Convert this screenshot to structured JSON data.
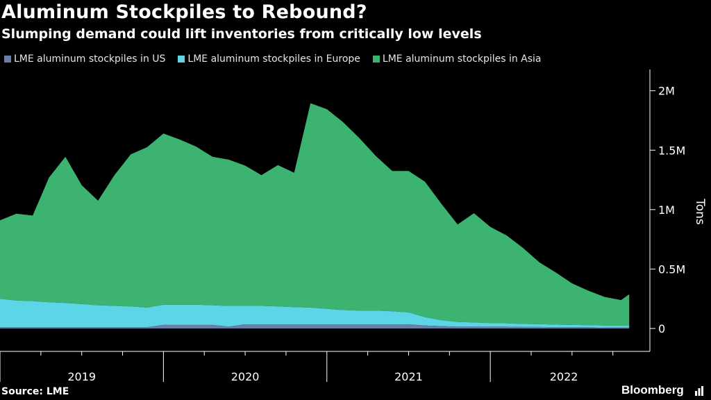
{
  "title": "Aluminum Stockpiles to Rebound?",
  "subtitle": "Slumping demand could lift inventories from critically low levels",
  "source": "Source: LME",
  "brand": "Bloomberg",
  "colors": {
    "us": "#6b7ea6",
    "europe": "#5cd6e6",
    "asia": "#3cb371",
    "axis": "#ffffff",
    "grid": "#555555"
  },
  "chart_data": {
    "type": "area",
    "stacked": true,
    "title": "Aluminum Stockpiles to Rebound?",
    "ylabel": "Tons",
    "ylim": [
      0,
      2150000
    ],
    "yticks": [
      0,
      500000,
      1000000,
      1500000,
      2000000
    ],
    "ytick_labels": [
      "0",
      "0.5M",
      "1M",
      "1.5M",
      "2M"
    ],
    "xlim": [
      2019.0,
      2022.9
    ],
    "years": [
      "2019",
      "2020",
      "2021",
      "2022"
    ],
    "x": [
      2019.0,
      2019.1,
      2019.2,
      2019.3,
      2019.4,
      2019.5,
      2019.6,
      2019.7,
      2019.8,
      2019.9,
      2020.0,
      2020.1,
      2020.2,
      2020.3,
      2020.4,
      2020.5,
      2020.6,
      2020.7,
      2020.8,
      2020.9,
      2021.0,
      2021.1,
      2021.2,
      2021.3,
      2021.4,
      2021.5,
      2021.6,
      2021.7,
      2021.8,
      2021.9,
      2022.0,
      2022.1,
      2022.2,
      2022.3,
      2022.4,
      2022.5,
      2022.6,
      2022.7,
      2022.8,
      2022.85
    ],
    "series": [
      {
        "name": "LME aluminum stockpiles in US",
        "key": "us",
        "values": [
          10000,
          10000,
          10000,
          10000,
          10000,
          10000,
          10000,
          10000,
          10000,
          10000,
          30000,
          30000,
          30000,
          30000,
          15000,
          35000,
          35000,
          35000,
          35000,
          35000,
          35000,
          35000,
          35000,
          35000,
          35000,
          35000,
          25000,
          20000,
          15000,
          15000,
          15000,
          15000,
          12000,
          12000,
          10000,
          10000,
          10000,
          8000,
          8000,
          8000
        ]
      },
      {
        "name": "LME aluminum stockpiles in Europe",
        "key": "europe",
        "values": [
          240000,
          225000,
          220000,
          210000,
          205000,
          195000,
          185000,
          180000,
          175000,
          165000,
          170000,
          170000,
          170000,
          165000,
          175000,
          155000,
          155000,
          150000,
          145000,
          140000,
          130000,
          120000,
          115000,
          115000,
          110000,
          100000,
          70000,
          50000,
          40000,
          35000,
          30000,
          28000,
          26000,
          24000,
          22000,
          20000,
          18000,
          17000,
          16000,
          15000
        ]
      },
      {
        "name": "LME aluminum stockpiles in Asia",
        "key": "asia",
        "values": [
          660000,
          730000,
          720000,
          1050000,
          1230000,
          1000000,
          880000,
          1100000,
          1280000,
          1350000,
          1440000,
          1390000,
          1330000,
          1250000,
          1230000,
          1180000,
          1100000,
          1190000,
          1130000,
          1720000,
          1680000,
          1580000,
          1450000,
          1300000,
          1180000,
          1190000,
          1140000,
          980000,
          820000,
          920000,
          810000,
          740000,
          640000,
          520000,
          440000,
          350000,
          290000,
          240000,
          215000,
          265000
        ]
      }
    ]
  }
}
